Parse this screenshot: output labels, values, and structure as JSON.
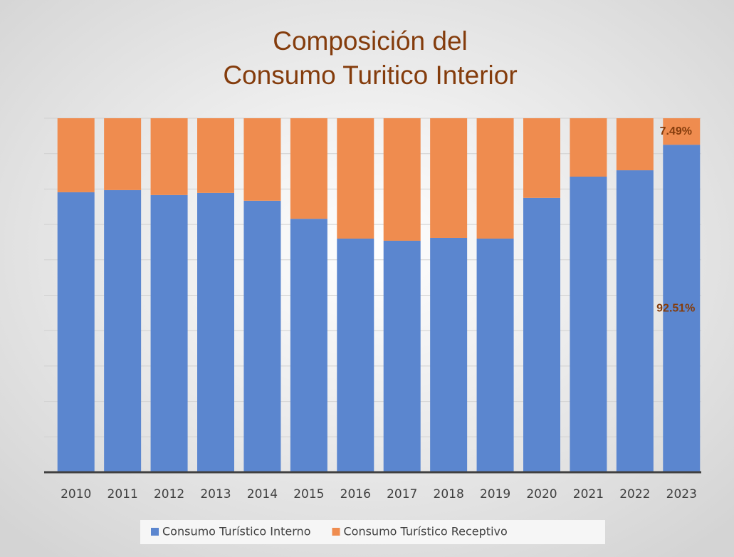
{
  "chart_data": {
    "type": "stacked_bar",
    "title": [
      "Composición del",
      "Consumo Turitico Interior"
    ],
    "categories": [
      "2010",
      "2011",
      "2012",
      "2013",
      "2014",
      "2015",
      "2016",
      "2017",
      "2018",
      "2019",
      "2020",
      "2021",
      "2022",
      "2023"
    ],
    "series": [
      {
        "name": "Consumo Turístico Interno",
        "color": "#5b86cf",
        "values": [
          79.1,
          79.7,
          78.3,
          78.9,
          76.7,
          71.6,
          66.0,
          65.4,
          66.2,
          66.0,
          77.5,
          83.5,
          85.3,
          92.51
        ],
        "value_labels": [
          null,
          null,
          null,
          null,
          null,
          null,
          null,
          null,
          null,
          null,
          null,
          null,
          null,
          "92.51%"
        ]
      },
      {
        "name": "Consumo Turístico Receptivo",
        "color": "#ef8c4f",
        "values": [
          20.9,
          20.3,
          21.7,
          21.1,
          23.3,
          28.4,
          34.0,
          34.6,
          33.8,
          34.0,
          22.5,
          16.5,
          14.7,
          7.49
        ],
        "value_labels": [
          null,
          null,
          null,
          null,
          null,
          null,
          null,
          null,
          null,
          null,
          null,
          null,
          null,
          "7.49%"
        ]
      }
    ],
    "ylim": [
      0,
      100
    ],
    "yticks": [
      0,
      10,
      20,
      30,
      40,
      50,
      60,
      70,
      80,
      90,
      100
    ],
    "grid": true,
    "legend": "bottom"
  }
}
